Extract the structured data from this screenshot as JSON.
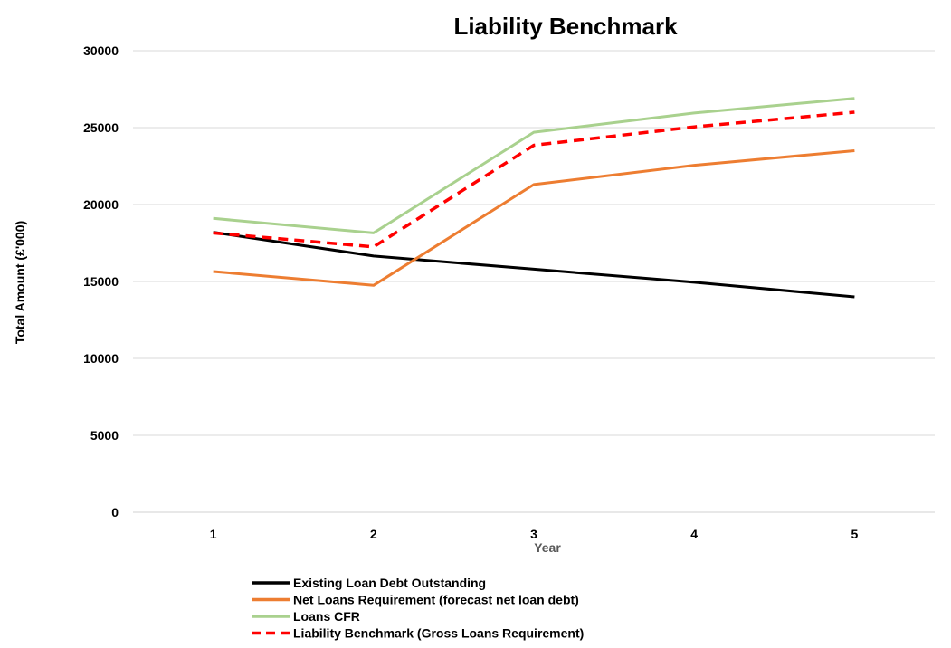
{
  "chart_data": {
    "type": "line",
    "title": "Liability Benchmark",
    "xlabel": "Year",
    "ylabel": "Total Amount  (£'000)",
    "categories": [
      "1",
      "2",
      "3",
      "4",
      "5"
    ],
    "ylim": [
      0,
      30000
    ],
    "yticks": [
      0,
      5000,
      10000,
      15000,
      20000,
      25000,
      30000
    ],
    "grid": true,
    "legend_position": "bottom",
    "series": [
      {
        "name": "Existing Loan Debt Outstanding",
        "values": [
          18200,
          16650,
          15800,
          14950,
          14000
        ],
        "color": "#000000",
        "dashed": false
      },
      {
        "name": "Net Loans Requirement (forecast net loan debt)",
        "values": [
          15650,
          14750,
          21300,
          22550,
          23500
        ],
        "color": "#ED7D31",
        "dashed": false
      },
      {
        "name": "Loans CFR",
        "values": [
          19100,
          18150,
          24700,
          25950,
          26900
        ],
        "color": "#A9D18E",
        "dashed": false
      },
      {
        "name": "Liability Benchmark (Gross Loans Requirement)",
        "values": [
          18150,
          17250,
          23850,
          25050,
          26000
        ],
        "color": "#FF0000",
        "dashed": true
      }
    ]
  }
}
